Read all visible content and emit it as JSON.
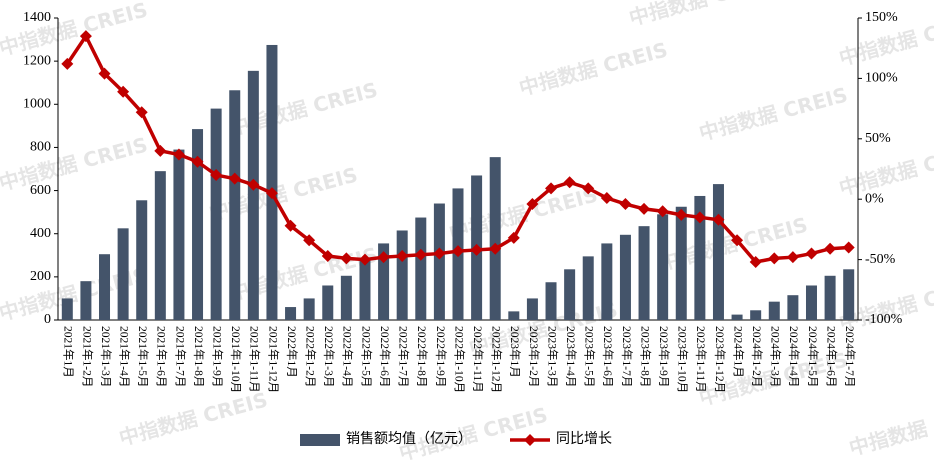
{
  "chart_data": {
    "type": "bar-line",
    "watermark": "中指数据 CREIS",
    "categories": [
      "2021年1月",
      "2021年1-2月",
      "2021年1-3月",
      "2021年1-4月",
      "2021年1-5月",
      "2021年1-6月",
      "2021年1-7月",
      "2021年1-8月",
      "2021年1-9月",
      "2021年1-10月",
      "2021年1-11月",
      "2021年1-12月",
      "2022年1月",
      "2022年1-2月",
      "2022年1-3月",
      "2022年1-4月",
      "2022年1-5月",
      "2022年1-6月",
      "2022年1-7月",
      "2022年1-8月",
      "2022年1-9月",
      "2022年1-10月",
      "2022年1-11月",
      "2022年1-12月",
      "2023年1月",
      "2023年1-2月",
      "2023年1-3月",
      "2023年1-4月",
      "2023年1-5月",
      "2023年1-6月",
      "2023年1-7月",
      "2023年1-8月",
      "2023年1-9月",
      "2023年1-10月",
      "2023年1-11月",
      "2023年1-12月",
      "2024年1月",
      "2024年1-2月",
      "2024年1-3月",
      "2024年1-4月",
      "2024年1-5月",
      "2024年1-6月",
      "2024年1-7月"
    ],
    "series": [
      {
        "name": "销售额均值（亿元）",
        "type": "bar",
        "color": "#44546a",
        "values": [
          100,
          180,
          305,
          425,
          555,
          690,
          790,
          885,
          980,
          1065,
          1155,
          1275,
          60,
          100,
          160,
          205,
          285,
          355,
          415,
          475,
          540,
          610,
          670,
          755,
          40,
          100,
          175,
          235,
          295,
          355,
          395,
          435,
          490,
          525,
          575,
          630,
          25,
          45,
          85,
          115,
          160,
          205,
          235
        ]
      },
      {
        "name": "同比增长",
        "type": "line",
        "axis": "y2",
        "color": "#c00000",
        "values": [
          112,
          135,
          104,
          89,
          72,
          40,
          37,
          31,
          20,
          17,
          12,
          5,
          -22,
          -34,
          -47,
          -49,
          -50,
          -48,
          -47,
          -46,
          -45,
          -43,
          -42,
          -41,
          -32,
          -4,
          9,
          14,
          9,
          1,
          -4,
          -8,
          -10,
          -13,
          -15,
          -17,
          -34,
          -52,
          -49,
          -48,
          -45,
          -41,
          -40
        ]
      }
    ],
    "ylim": [
      0,
      1400
    ],
    "yticks": [
      0,
      200,
      400,
      600,
      800,
      1000,
      1200,
      1400
    ],
    "y2lim": [
      -100,
      150
    ],
    "y2ticks": [
      {
        "value": -100,
        "label": "-100%"
      },
      {
        "value": -50,
        "label": "-50%"
      },
      {
        "value": 0,
        "label": "0%"
      },
      {
        "value": 50,
        "label": "50%"
      },
      {
        "value": 100,
        "label": "100%"
      },
      {
        "value": 150,
        "label": "150%"
      }
    ],
    "legend": "bottom"
  }
}
